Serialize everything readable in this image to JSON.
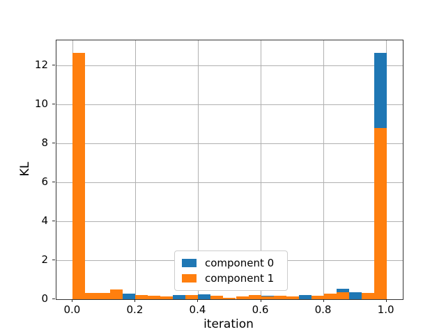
{
  "chart_data": {
    "type": "bar",
    "title": "",
    "xlabel": "iteration",
    "ylabel": "KL",
    "xlim": [
      -0.052,
      1.052
    ],
    "ylim": [
      0,
      13.3
    ],
    "x_tick_labels": [
      "0.0",
      "0.2",
      "0.4",
      "0.6",
      "0.8",
      "1.0"
    ],
    "x_tick_values": [
      0.0,
      0.2,
      0.4,
      0.6,
      0.8,
      1.0
    ],
    "y_tick_labels": [
      "0",
      "2",
      "4",
      "6",
      "8",
      "10",
      "12"
    ],
    "y_tick_values": [
      0,
      2,
      4,
      6,
      8,
      10,
      12
    ],
    "grid": true,
    "bar_width": 0.04,
    "bars_style": "overlapping (component 0 drawn behind component 1), not stacked",
    "legend_position": "lower center inside axes",
    "bin_centers": [
      0.02,
      0.06,
      0.1,
      0.14,
      0.18,
      0.22,
      0.26,
      0.3,
      0.34,
      0.38,
      0.42,
      0.46,
      0.5,
      0.54,
      0.58,
      0.62,
      0.66,
      0.7,
      0.74,
      0.78,
      0.82,
      0.86,
      0.9,
      0.94,
      0.98
    ],
    "series": [
      {
        "name": "component 0",
        "color": "#1f77b4",
        "values": [
          0,
          0,
          0,
          0,
          0.3,
          0,
          0,
          0,
          0.22,
          0,
          0.25,
          0,
          0,
          0,
          0,
          0.19,
          0,
          0,
          0.22,
          0,
          0,
          0.55,
          0.36,
          0,
          12.64
        ]
      },
      {
        "name": "component 1",
        "color": "#ff7f0e",
        "values": [
          12.64,
          0.33,
          0.33,
          0.5,
          0,
          0.2,
          0.19,
          0.15,
          0,
          0.2,
          0,
          0.17,
          0.08,
          0.13,
          0.2,
          0.16,
          0.18,
          0.14,
          0,
          0.18,
          0.3,
          0.37,
          0,
          0.31,
          8.78
        ]
      }
    ]
  },
  "legend": {
    "items": [
      {
        "label": "component 0",
        "color": "#1f77b4"
      },
      {
        "label": "component 1",
        "color": "#ff7f0e"
      }
    ]
  },
  "colors": {
    "background": "#ffffff",
    "gridline": "#b0b0b0",
    "spine": "#333333",
    "tick": "#262626",
    "text": "#000000"
  }
}
